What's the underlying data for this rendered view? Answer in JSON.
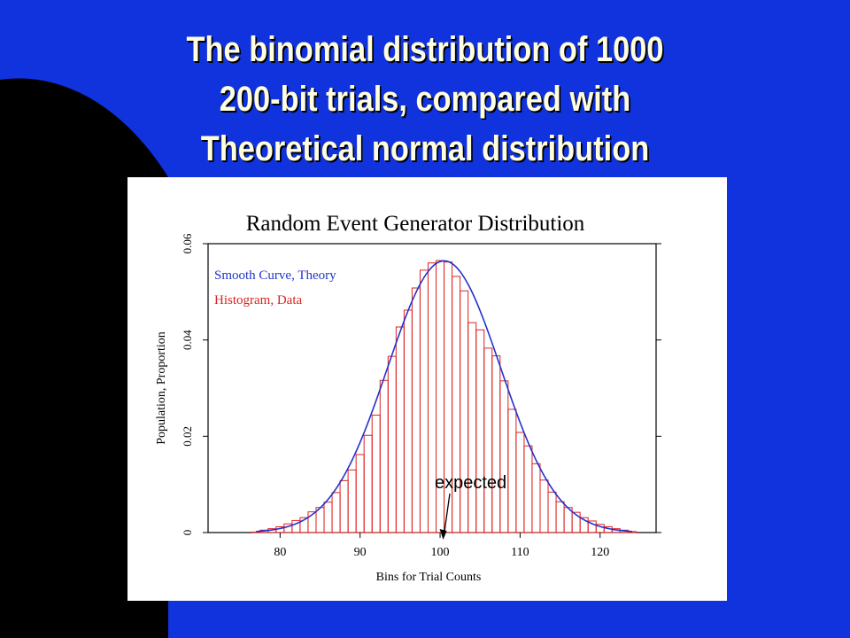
{
  "slide": {
    "background_color": "#1133dd",
    "title_color": "#fffde0",
    "title_lines": [
      "The binomial distribution of 1000",
      "200-bit trials, compared with",
      "Theoretical normal distribution"
    ]
  },
  "chart_data": {
    "type": "bar",
    "title": "Random Event Generator Distribution",
    "xlabel": "Bins for Trial Counts",
    "ylabel": "Population, Proportion",
    "xlim": [
      71,
      127
    ],
    "ylim": [
      0,
      0.06
    ],
    "x_ticks": [
      80,
      90,
      100,
      110,
      120
    ],
    "y_ticks": [
      0,
      0.02,
      0.04,
      0.06
    ],
    "y_tick_labels": [
      "0",
      "0.02",
      "0.04",
      "0.06"
    ],
    "legend": {
      "position": "top-left",
      "items": [
        {
          "label": "Smooth Curve, Theory",
          "color": "#2233cc"
        },
        {
          "label": "Histogram, Data",
          "color": "#dd2222"
        }
      ]
    },
    "series": [
      {
        "name": "Histogram, Data",
        "kind": "bars",
        "color": "#dd2222",
        "x": [
          77,
          78,
          79,
          80,
          81,
          82,
          83,
          84,
          85,
          86,
          87,
          88,
          89,
          90,
          91,
          92,
          93,
          94,
          95,
          96,
          97,
          98,
          99,
          100,
          101,
          102,
          103,
          104,
          105,
          106,
          107,
          108,
          109,
          110,
          111,
          112,
          113,
          114,
          115,
          116,
          117,
          118,
          119,
          120,
          121,
          122,
          123,
          124
        ],
        "values": [
          0.0001,
          0.0005,
          0.0008,
          0.0012,
          0.0018,
          0.0025,
          0.0031,
          0.0043,
          0.0052,
          0.0063,
          0.0083,
          0.0108,
          0.013,
          0.0162,
          0.0202,
          0.0244,
          0.0316,
          0.0366,
          0.0427,
          0.0462,
          0.0508,
          0.0545,
          0.056,
          0.0565,
          0.0562,
          0.0532,
          0.0502,
          0.0436,
          0.0421,
          0.0383,
          0.0367,
          0.0315,
          0.0256,
          0.0208,
          0.018,
          0.0143,
          0.0109,
          0.0084,
          0.0064,
          0.0052,
          0.0042,
          0.0031,
          0.0024,
          0.0017,
          0.0012,
          0.0008,
          0.0005,
          0.0002
        ]
      },
      {
        "name": "Smooth Curve, Theory",
        "kind": "curve",
        "color": "#2233cc",
        "mean": 100.5,
        "sd": 7.07
      }
    ],
    "annotations": [
      {
        "text": "expected",
        "x": 100.5
      }
    ]
  }
}
